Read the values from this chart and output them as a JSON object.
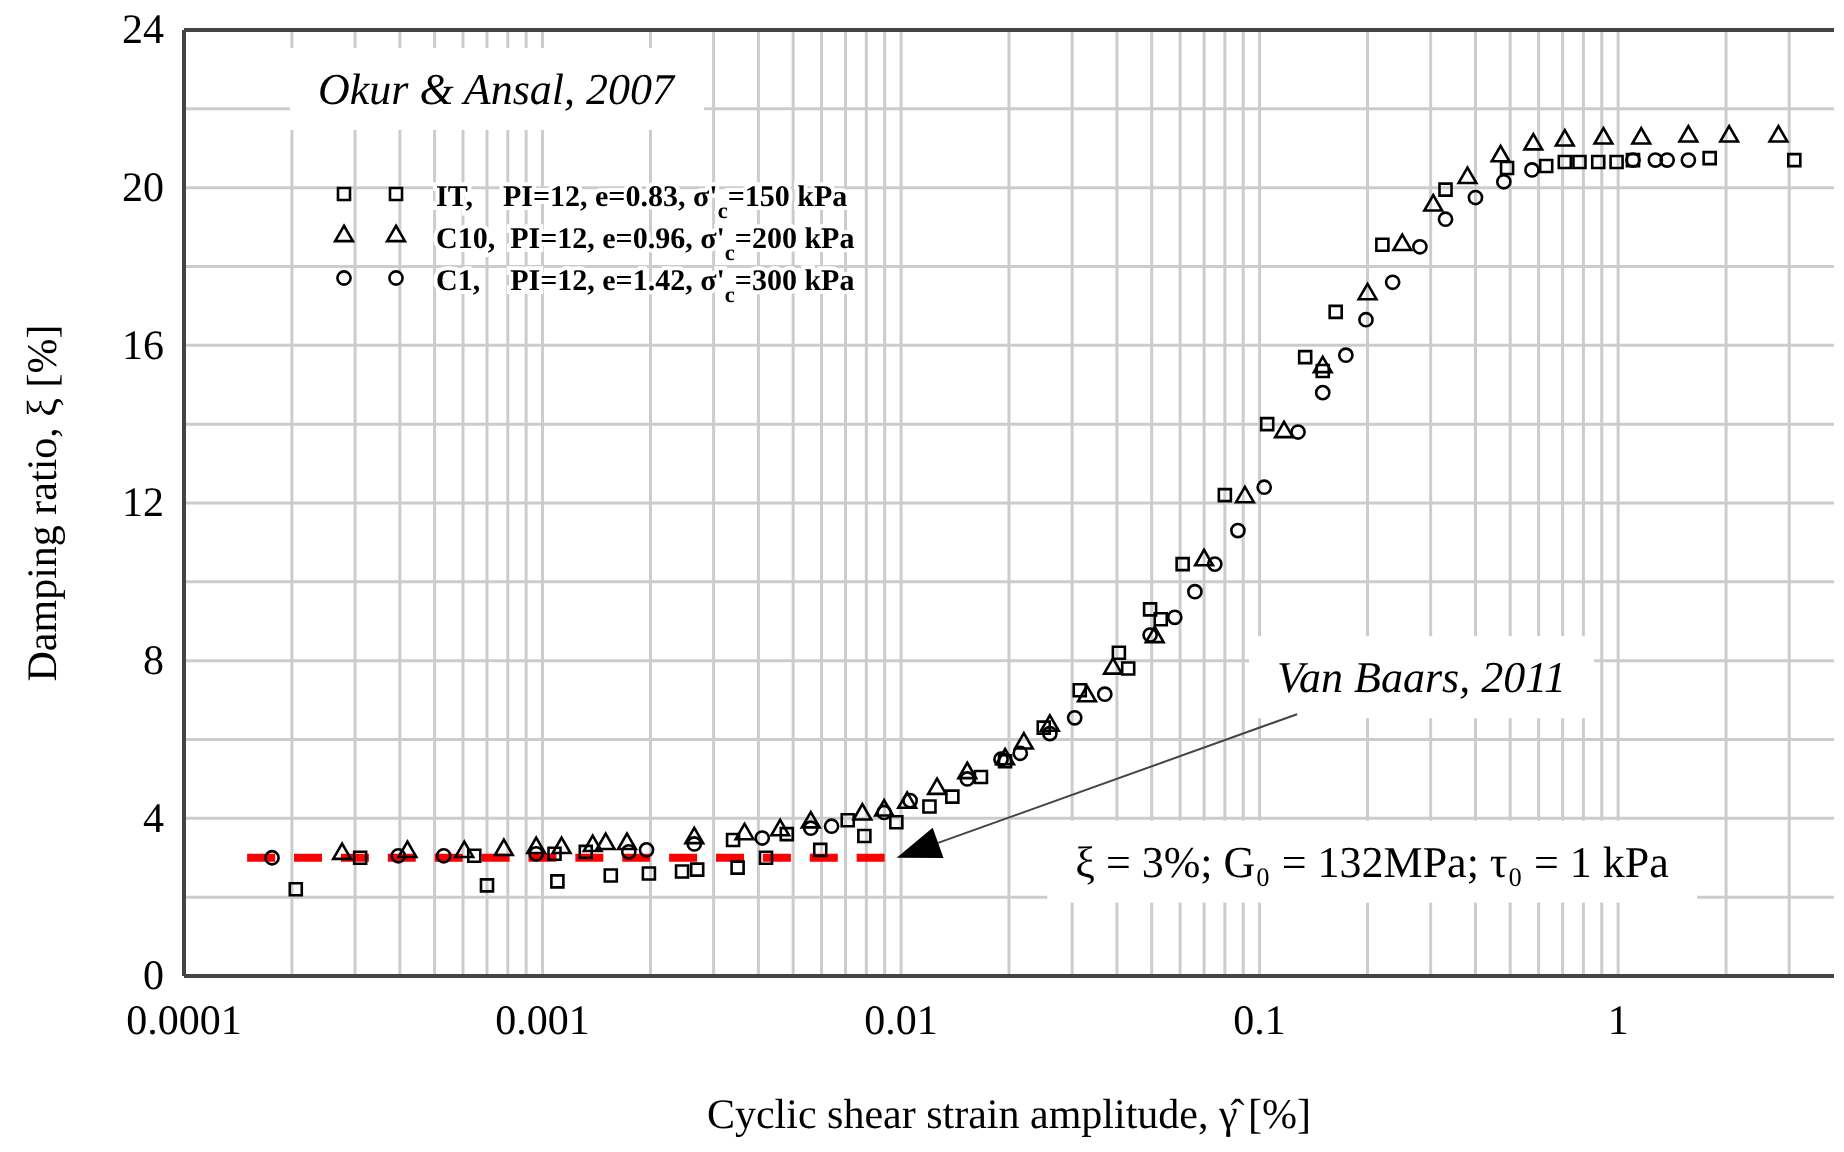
{
  "chart_data": {
    "type": "scatter",
    "xlabel": "Cyclic shear strain amplitude, γ̂  [%]",
    "ylabel": "Damping ratio, ξ [%]",
    "log": "x",
    "grid": true,
    "legend": "top left",
    "xlim": [
      0.0001,
      4
    ],
    "ylim": [
      0,
      24
    ],
    "xticks": [
      0.0001,
      {
        "value": 0.0002,
        "label": null
      },
      {
        "value": 0.0003,
        "label": null
      },
      {
        "value": 0.0004,
        "label": null
      },
      {
        "value": 0.0005,
        "label": null
      },
      {
        "value": 0.0006,
        "label": null
      },
      {
        "value": 0.0007,
        "label": null
      },
      {
        "value": 0.0008,
        "label": null
      },
      {
        "value": 0.0009,
        "label": null
      },
      0.001,
      {
        "value": 0.002,
        "label": null
      },
      {
        "value": 0.003,
        "label": null
      },
      {
        "value": 0.004,
        "label": null
      },
      {
        "value": 0.005,
        "label": null
      },
      {
        "value": 0.006,
        "label": null
      },
      {
        "value": 0.007,
        "label": null
      },
      {
        "value": 0.008,
        "label": null
      },
      {
        "value": 0.009,
        "label": null
      },
      0.01,
      {
        "value": 0.02,
        "label": null
      },
      {
        "value": 0.03,
        "label": null
      },
      {
        "value": 0.04,
        "label": null
      },
      {
        "value": 0.05,
        "label": null
      },
      {
        "value": 0.06,
        "label": null
      },
      {
        "value": 0.07,
        "label": null
      },
      {
        "value": 0.08,
        "label": null
      },
      {
        "value": 0.09,
        "label": null
      },
      0.1,
      {
        "value": 0.2,
        "label": null
      },
      {
        "value": 0.3,
        "label": null
      },
      {
        "value": 0.4,
        "label": null
      },
      {
        "value": 0.5,
        "label": null
      },
      {
        "value": 0.6,
        "label": null
      },
      {
        "value": 0.7,
        "label": null
      },
      {
        "value": 0.8,
        "label": null
      },
      {
        "value": 0.9,
        "label": null
      },
      1,
      {
        "value": 2,
        "label": null
      },
      {
        "value": 3,
        "label": null
      }
    ],
    "yticks": [
      0,
      {
        "value": 2,
        "label": null
      },
      4,
      {
        "value": 6,
        "label": null
      },
      8,
      {
        "value": 10,
        "label": null
      },
      12,
      {
        "value": 14,
        "label": null
      },
      16,
      {
        "value": 18,
        "label": null
      },
      20,
      {
        "value": 22,
        "label": null
      },
      24
    ],
    "series": [
      {
        "name": "IT,    PI=12, e=0.83, σ'$_{c}$=150 kPa",
        "color": "#000000",
        "marker": "square",
        "x": [
          0.000205,
          0.00031,
          0.000645,
          0.0007,
          0.00108,
          0.0011,
          0.00132,
          0.00155,
          0.00198,
          0.00245,
          0.0027,
          0.0034,
          0.0035,
          0.0042,
          0.0048,
          0.00595,
          0.0071,
          0.0079,
          0.0097,
          0.012,
          0.0139,
          0.0167,
          0.0195,
          0.025,
          0.0315,
          0.0405,
          0.043,
          0.0495,
          0.053,
          0.061,
          0.08,
          0.105,
          0.134,
          0.15,
          0.163,
          0.22,
          0.33,
          0.49,
          0.63,
          0.71,
          0.78,
          0.88,
          0.99,
          1.1,
          1.8,
          3.1
        ],
        "values": [
          2.2,
          3.0,
          3.05,
          2.3,
          3.1,
          2.4,
          3.15,
          2.55,
          2.6,
          2.65,
          2.7,
          3.45,
          2.75,
          3.0,
          3.6,
          3.2,
          3.95,
          3.55,
          3.9,
          4.3,
          4.55,
          5.05,
          5.45,
          6.3,
          7.25,
          8.2,
          7.8,
          9.3,
          9.05,
          10.45,
          12.2,
          14.0,
          15.7,
          15.35,
          16.85,
          18.55,
          19.95,
          20.5,
          20.55,
          20.65,
          20.65,
          20.65,
          20.65,
          20.7,
          20.75,
          20.7
        ]
      },
      {
        "name": "C10,  PI=12, e=0.96, σ'$_{c}$=200 kPa",
        "color": "#000000",
        "marker": "triangle",
        "x": [
          0.000276,
          0.00042,
          0.000605,
          0.00078,
          0.00096,
          0.00113,
          0.00138,
          0.0015,
          0.00172,
          0.00265,
          0.00366,
          0.0046,
          0.0056,
          0.0078,
          0.00897,
          0.0104,
          0.0126,
          0.0153,
          0.0195,
          0.022,
          0.026,
          0.033,
          0.039,
          0.051,
          0.07,
          0.091,
          0.117,
          0.15,
          0.2,
          0.25,
          0.305,
          0.38,
          0.47,
          0.58,
          0.71,
          0.91,
          1.16,
          1.57,
          2.04,
          2.8
        ],
        "values": [
          3.1,
          3.15,
          3.15,
          3.2,
          3.25,
          3.25,
          3.3,
          3.35,
          3.35,
          3.5,
          3.6,
          3.7,
          3.9,
          4.1,
          4.2,
          4.4,
          4.75,
          5.15,
          5.5,
          5.9,
          6.35,
          7.1,
          7.8,
          8.6,
          10.55,
          12.15,
          13.8,
          15.45,
          17.3,
          18.55,
          19.55,
          20.25,
          20.8,
          21.1,
          21.2,
          21.25,
          21.25,
          21.3,
          21.3,
          21.3
        ]
      },
      {
        "name": "C1,    PI=12, e=1.42, σ'$_{c}$=300 kPa",
        "color": "#000000",
        "marker": "circle",
        "x": [
          0.000176,
          0.000396,
          0.00053,
          0.00096,
          0.00174,
          0.00195,
          0.00265,
          0.0041,
          0.0056,
          0.0064,
          0.00897,
          0.0106,
          0.0153,
          0.019,
          0.0215,
          0.026,
          0.0305,
          0.037,
          0.0495,
          0.058,
          0.066,
          0.075,
          0.087,
          0.103,
          0.128,
          0.15,
          0.174,
          0.198,
          0.235,
          0.28,
          0.33,
          0.4,
          0.48,
          0.575,
          1.1,
          1.27,
          1.37,
          1.57
        ],
        "values": [
          3.0,
          3.05,
          3.05,
          3.1,
          3.15,
          3.2,
          3.35,
          3.5,
          3.75,
          3.8,
          4.15,
          4.45,
          5.0,
          5.5,
          5.65,
          6.15,
          6.55,
          7.15,
          8.65,
          9.1,
          9.75,
          10.45,
          11.3,
          12.4,
          13.8,
          14.8,
          15.75,
          16.65,
          17.6,
          18.5,
          19.2,
          19.75,
          20.15,
          20.45,
          20.7,
          20.7,
          20.7,
          20.7
        ]
      },
      {
        "type": "line",
        "color": "#ff0000",
        "line_style": "dashed",
        "x": [
          0.00015,
          0.009
        ],
        "values": [
          3,
          3
        ]
      }
    ],
    "annotations": [
      "Okur & Ansal, 2007",
      "Van Baars, 2011",
      "ξ = 3%; G₀ = 132MPa; τ₀ = 1 kPa"
    ]
  }
}
